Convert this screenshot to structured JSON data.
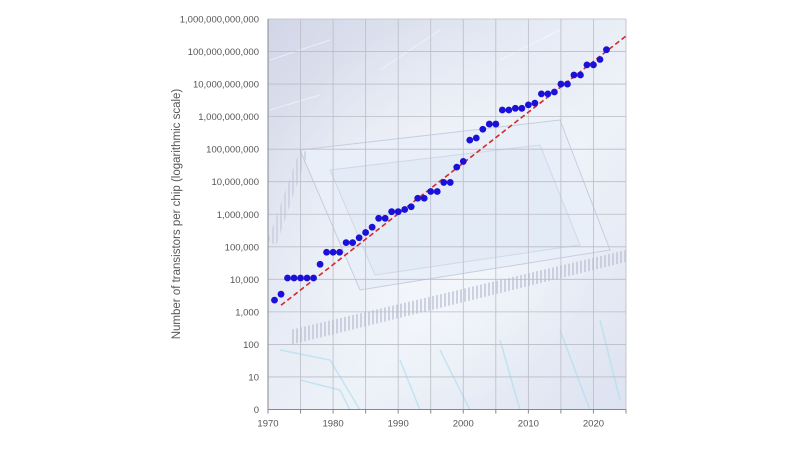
{
  "chart_data": {
    "type": "scatter",
    "title": "",
    "xlabel": "",
    "ylabel": "Number of transistors per chip (logarithmic scale)",
    "y_scale": "log",
    "grid": true,
    "xlim": [
      1970,
      2025
    ],
    "ylim_exponent": [
      0,
      12
    ],
    "x_ticks": [
      "1970",
      "1980",
      "1990",
      "2000",
      "2010",
      "2020"
    ],
    "y_ticks": [
      "0",
      "10",
      "100",
      "1,000",
      "10,000",
      "100,000",
      "1,000,000",
      "10,000,000",
      "100,000,000",
      "1,000,000,000",
      "10,000,000,000",
      "100,000,000,000",
      "1,000,000,000,000"
    ],
    "series": [
      {
        "marker_color": "#1a10d8",
        "points": [
          [
            1971,
            2300
          ],
          [
            1972,
            3500
          ],
          [
            1973,
            11000
          ],
          [
            1974,
            11000
          ],
          [
            1975,
            11000
          ],
          [
            1976,
            11000
          ],
          [
            1977,
            11000
          ],
          [
            1978,
            29000
          ],
          [
            1979,
            68000
          ],
          [
            1980,
            68000
          ],
          [
            1981,
            68000
          ],
          [
            1982,
            134000
          ],
          [
            1983,
            134000
          ],
          [
            1984,
            190000
          ],
          [
            1985,
            275000
          ],
          [
            1986,
            400000
          ],
          [
            1987,
            750000
          ],
          [
            1988,
            750000
          ],
          [
            1989,
            1200000
          ],
          [
            1990,
            1200000
          ],
          [
            1991,
            1400000
          ],
          [
            1992,
            1700000
          ],
          [
            1993,
            3100000
          ],
          [
            1994,
            3100000
          ],
          [
            1995,
            5000000
          ],
          [
            1996,
            5000000
          ],
          [
            1997,
            9500000
          ],
          [
            1998,
            9500000
          ],
          [
            1999,
            28000000
          ],
          [
            2000,
            42000000
          ],
          [
            2001,
            190000000
          ],
          [
            2002,
            220000000
          ],
          [
            2003,
            410000000
          ],
          [
            2004,
            590000000
          ],
          [
            2005,
            590000000
          ],
          [
            2006,
            1600000000
          ],
          [
            2007,
            1600000000
          ],
          [
            2008,
            1800000000
          ],
          [
            2009,
            1800000000
          ],
          [
            2010,
            2300000000
          ],
          [
            2011,
            2600000000
          ],
          [
            2012,
            5000000000
          ],
          [
            2013,
            5000000000
          ],
          [
            2014,
            5700000000
          ],
          [
            2015,
            10000000000
          ],
          [
            2016,
            10000000000
          ],
          [
            2017,
            19000000000
          ],
          [
            2018,
            19000000000
          ],
          [
            2019,
            39000000000
          ],
          [
            2020,
            39000000000
          ],
          [
            2021,
            57000000000
          ],
          [
            2022,
            114000000000
          ]
        ]
      }
    ],
    "trend_line": {
      "color": "#d42a2a",
      "style": "dashed",
      "from": [
        1972,
        1600
      ],
      "to": [
        2025,
        300000000000
      ]
    },
    "colors": {
      "grid": "#bcbcc6",
      "axis": "#888888",
      "background_tint": "#dde1ef"
    }
  }
}
